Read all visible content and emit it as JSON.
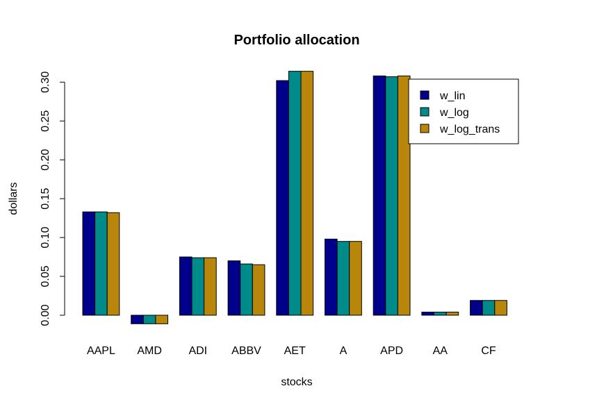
{
  "chart_data": {
    "type": "bar",
    "title": "Portfolio allocation",
    "xlabel": "stocks",
    "ylabel": "dollars",
    "ylim": [
      -0.012,
      0.315
    ],
    "yticks": [
      0.0,
      0.05,
      0.1,
      0.15,
      0.2,
      0.25,
      0.3
    ],
    "ytick_labels": [
      "0.00",
      "0.05",
      "0.10",
      "0.15",
      "0.20",
      "0.25",
      "0.30"
    ],
    "grid": false,
    "legend_position": "top-right",
    "categories": [
      "AAPL",
      "AMD",
      "ADI",
      "ABBV",
      "AET",
      "A",
      "APD",
      "AA",
      "CF"
    ],
    "series": [
      {
        "name": "w_lin",
        "color": "#00008B",
        "values": [
          0.133,
          -0.011,
          0.075,
          0.07,
          0.302,
          0.098,
          0.308,
          0.004,
          0.019
        ]
      },
      {
        "name": "w_log",
        "color": "#008B8B",
        "values": [
          0.133,
          -0.011,
          0.074,
          0.066,
          0.314,
          0.095,
          0.307,
          0.004,
          0.019
        ]
      },
      {
        "name": "w_log_trans",
        "color": "#B8860B",
        "values": [
          0.132,
          -0.011,
          0.074,
          0.065,
          0.314,
          0.095,
          0.308,
          0.004,
          0.019
        ]
      }
    ]
  }
}
